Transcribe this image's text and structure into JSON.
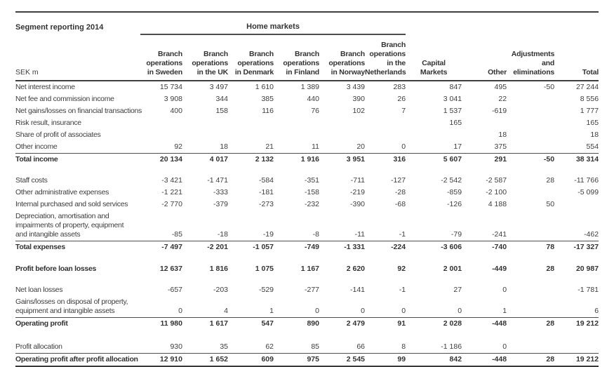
{
  "report": {
    "title": "Segment reporting 2014",
    "unit_label": "SEK m",
    "group_header": "Home markets",
    "group_span_columns": 6
  },
  "columns": [
    "Branch\noperations\nin Sweden",
    "Branch\noperations\nin the UK",
    "Branch\noperations\nin Denmark",
    "Branch\noperations\nin Finland",
    "Branch\noperations\nin Norway",
    "Branch\noperations\nin the\nNetherlands",
    "Capital\nMarkets",
    "Other",
    "Adjustments\nand\neliminations",
    "Total"
  ],
  "rows": [
    {
      "label": "Net interest income",
      "values": [
        "15 734",
        "3 497",
        "1 610",
        "1 389",
        "3 439",
        "283",
        "847",
        "495",
        "-50",
        "27 244"
      ]
    },
    {
      "label": "Net fee and commission income",
      "values": [
        "3 908",
        "344",
        "385",
        "440",
        "390",
        "26",
        "3 041",
        "22",
        "",
        "8 556"
      ]
    },
    {
      "label": "Net gains/losses on financial transactions",
      "values": [
        "400",
        "158",
        "116",
        "76",
        "102",
        "7",
        "1 537",
        "-619",
        "",
        "1 777"
      ]
    },
    {
      "label": "Risk result, insurance",
      "values": [
        "",
        "",
        "",
        "",
        "",
        "",
        "165",
        "",
        "",
        "165"
      ]
    },
    {
      "label": "Share of profit of associates",
      "values": [
        "",
        "",
        "",
        "",
        "",
        "",
        "",
        "18",
        "",
        "18"
      ]
    },
    {
      "label": "Other income",
      "values": [
        "92",
        "18",
        "21",
        "11",
        "20",
        "0",
        "17",
        "375",
        "",
        "554"
      ]
    },
    {
      "label": "Total income",
      "bold": true,
      "rule_above": true,
      "values": [
        "20 134",
        "4 017",
        "2 132",
        "1 916",
        "3 951",
        "316",
        "5 607",
        "291",
        "-50",
        "38 314"
      ]
    },
    {
      "label": "Staff costs",
      "spacer_before": 13,
      "values": [
        "-3 421",
        "-1 471",
        "-584",
        "-351",
        "-711",
        "-127",
        "-2 542",
        "-2 587",
        "28",
        "-11 766"
      ]
    },
    {
      "label": "Other administrative expenses",
      "values": [
        "-1 221",
        "-333",
        "-181",
        "-158",
        "-219",
        "-28",
        "-859",
        "-2 100",
        "",
        "-5 099"
      ]
    },
    {
      "label": "Internal purchased and sold services",
      "values": [
        "-2 770",
        "-379",
        "-273",
        "-232",
        "-390",
        "-68",
        "-126",
        "4 188",
        "50",
        ""
      ]
    },
    {
      "label": "Depreciation, amortisation and\nimpairments of property, equipment\nand intangible assets",
      "values": [
        "-85",
        "-18",
        "-19",
        "-8",
        "-11",
        "-1",
        "-79",
        "-241",
        "",
        "-462"
      ]
    },
    {
      "label": "Total expenses",
      "bold": true,
      "rule_above": true,
      "values": [
        "-7 497",
        "-2 201",
        "-1 057",
        "-749",
        "-1 331",
        "-224",
        "-3 606",
        "-740",
        "78",
        "-17 327"
      ]
    },
    {
      "label": "Profit before loan losses",
      "bold": true,
      "spacer_before": 14,
      "values": [
        "12 637",
        "1 816",
        "1 075",
        "1 167",
        "2 620",
        "92",
        "2 001",
        "-449",
        "28",
        "20 987"
      ]
    },
    {
      "label": "Net loan losses",
      "spacer_before": 13,
      "values": [
        "-657",
        "-203",
        "-529",
        "-277",
        "-141",
        "-1",
        "27",
        "0",
        "",
        "-1 781"
      ]
    },
    {
      "label": "Gains/losses on disposal of property,\nequipment and intangible assets",
      "values": [
        "0",
        "4",
        "1",
        "0",
        "0",
        "0",
        "0",
        "1",
        "",
        "6"
      ]
    },
    {
      "label": "Operating profit",
      "bold": true,
      "rule_above": true,
      "values": [
        "11 980",
        "1 617",
        "547",
        "890",
        "2 479",
        "91",
        "2 028",
        "-448",
        "28",
        "19 212"
      ]
    },
    {
      "label": "Profit allocation",
      "spacer_before": 16,
      "values": [
        "930",
        "35",
        "62",
        "85",
        "66",
        "8",
        "-1 186",
        "0",
        "",
        ""
      ]
    },
    {
      "label": "Operating profit after profit allocation",
      "bold": true,
      "rule_above": true,
      "rule_below": true,
      "values": [
        "12 910",
        "1 652",
        "609",
        "975",
        "2 545",
        "99",
        "842",
        "-448",
        "28",
        "19 212"
      ]
    }
  ],
  "colors": {
    "text": "#3e3e3e",
    "bold_text": "#333333",
    "rule_thick": "#3f3f3f",
    "rule_thin": "#4f4f4f",
    "group_rule": "#4d4d4d",
    "background": "#ffffff"
  }
}
